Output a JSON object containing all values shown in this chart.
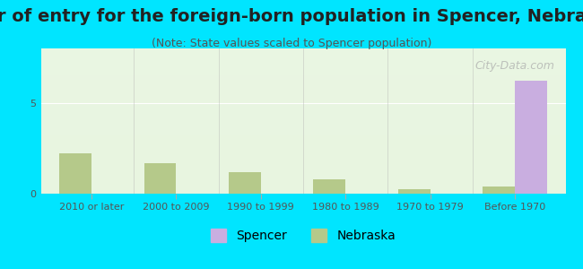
{
  "title": "Year of entry for the foreign-born population in Spencer, Nebraska",
  "subtitle": "(Note: State values scaled to Spencer population)",
  "categories": [
    "2010 or later",
    "2000 to 2009",
    "1990 to 1999",
    "1980 to 1989",
    "1970 to 1979",
    "Before 1970"
  ],
  "spencer_values": [
    0,
    0,
    0,
    0,
    0,
    6.2
  ],
  "nebraska_values": [
    2.2,
    1.7,
    1.2,
    0.8,
    0.25,
    0.4
  ],
  "spencer_color": "#c9aee0",
  "nebraska_color": "#b5c98a",
  "background_color": "#00e5ff",
  "plot_bg_gradient_top": "#f0fff0",
  "plot_bg_gradient_bottom": "#e8f5e8",
  "ylim": [
    0,
    8
  ],
  "yticks": [
    0,
    5
  ],
  "bar_width": 0.38,
  "title_fontsize": 14,
  "subtitle_fontsize": 9,
  "tick_fontsize": 8,
  "legend_fontsize": 10,
  "watermark_text": "City-Data.com",
  "title_color": "#222222",
  "subtitle_color": "#555555",
  "tick_color": "#555555",
  "axis_line_color": "#aaaaaa"
}
